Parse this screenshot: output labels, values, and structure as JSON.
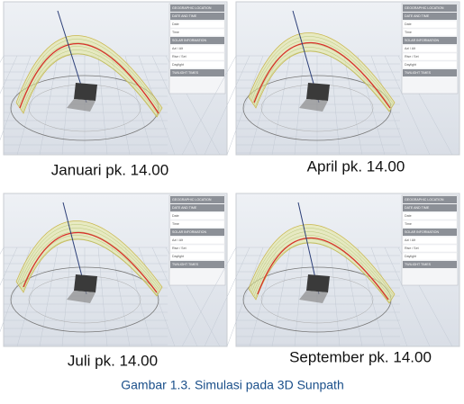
{
  "figure": {
    "panels": [
      {
        "caption": "Januari pk. 14.00",
        "sidebar": {
          "sections": [
            "GEOGRAPHIC LOCATION",
            "DATE AND TIME",
            "SOLAR INFORMATION",
            "TWILIGHT TIMES"
          ],
          "fields": [
            "Date",
            "Time",
            "Azi / Alt",
            "Rise / Set",
            "Daylight"
          ]
        }
      },
      {
        "caption": "April pk. 14.00",
        "sidebar": {
          "sections": [
            "GEOGRAPHIC LOCATION",
            "DATE AND TIME",
            "SOLAR INFORMATION",
            "TWILIGHT TIMES"
          ],
          "fields": [
            "Date",
            "Time",
            "Azi / Alt",
            "Rise / Set",
            "Daylight"
          ]
        }
      },
      {
        "caption": "Juli pk. 14.00",
        "sidebar": {
          "sections": [
            "GEOGRAPHIC LOCATION",
            "DATE AND TIME",
            "SOLAR INFORMATION",
            "TWILIGHT TIMES"
          ],
          "fields": [
            "Date",
            "Time",
            "Azi / Alt",
            "Rise / Set",
            "Daylight"
          ]
        }
      },
      {
        "caption": "September pk. 14.00",
        "sidebar": {
          "sections": [
            "GEOGRAPHIC LOCATION",
            "DATE AND TIME",
            "SOLAR INFORMATION",
            "TWILIGHT TIMES"
          ],
          "fields": [
            "Date",
            "Time",
            "Azi / Alt",
            "Rise / Set",
            "Daylight"
          ]
        }
      }
    ],
    "caption": "Gambar 1.3. Simulasi pada 3D Sunpath"
  }
}
